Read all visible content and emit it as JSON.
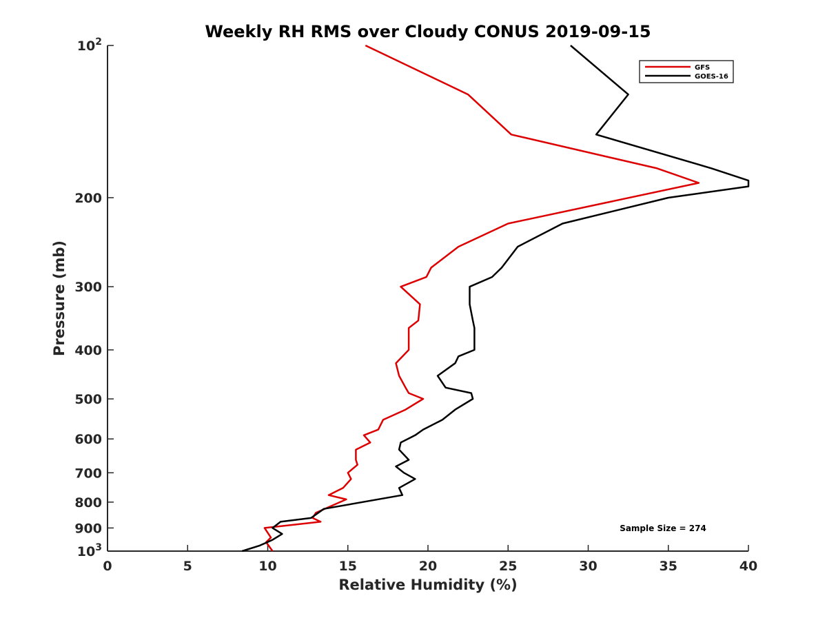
{
  "chart_data": {
    "type": "line",
    "title": "Weekly RH RMS over Cloudy CONUS 2019-09-15",
    "xlabel": "Relative Humidity (%)",
    "ylabel": "Pressure (mb)",
    "xlim": [
      0,
      40
    ],
    "ylim": [
      100,
      1000
    ],
    "y_scale": "log",
    "y_reversed": true,
    "x_ticks": [
      "0",
      "5",
      "10",
      "15",
      "20",
      "25",
      "30",
      "35",
      "40"
    ],
    "y_ticks": [
      {
        "value": 100,
        "base": "10",
        "exp": "2"
      },
      {
        "value": 200,
        "label": "200"
      },
      {
        "value": 300,
        "label": "300"
      },
      {
        "value": 400,
        "label": "400"
      },
      {
        "value": 500,
        "label": "500"
      },
      {
        "value": 600,
        "label": "600"
      },
      {
        "value": 700,
        "label": "700"
      },
      {
        "value": 800,
        "label": "800"
      },
      {
        "value": 900,
        "label": "900"
      },
      {
        "value": 1000,
        "base": "10",
        "exp": "3"
      }
    ],
    "grid": false,
    "legend_position": "top-right",
    "annotation": "Sample Size = 274",
    "series": [
      {
        "name": "GFS",
        "color": "#dd0000",
        "points": [
          [
            16.1,
            100
          ],
          [
            22.5,
            125
          ],
          [
            25.2,
            150
          ],
          [
            34.3,
            175
          ],
          [
            36.9,
            187
          ],
          [
            25.0,
            225
          ],
          [
            21.9,
            250
          ],
          [
            20.2,
            275
          ],
          [
            19.9,
            287
          ],
          [
            18.3,
            300
          ],
          [
            19.5,
            325
          ],
          [
            19.4,
            350
          ],
          [
            18.8,
            362
          ],
          [
            18.8,
            400
          ],
          [
            18.0,
            425
          ],
          [
            18.2,
            450
          ],
          [
            18.6,
            475
          ],
          [
            18.8,
            487
          ],
          [
            19.7,
            500
          ],
          [
            18.6,
            525
          ],
          [
            17.2,
            550
          ],
          [
            16.9,
            575
          ],
          [
            16.0,
            590
          ],
          [
            16.4,
            610
          ],
          [
            15.5,
            630
          ],
          [
            15.5,
            660
          ],
          [
            15.6,
            675
          ],
          [
            15.0,
            700
          ],
          [
            15.2,
            720
          ],
          [
            14.7,
            750
          ],
          [
            13.8,
            775
          ],
          [
            14.9,
            790
          ],
          [
            13.0,
            840
          ],
          [
            12.8,
            860
          ],
          [
            13.3,
            875
          ],
          [
            9.8,
            900
          ],
          [
            10.2,
            940
          ],
          [
            9.9,
            960
          ],
          [
            10.3,
            1000
          ]
        ]
      },
      {
        "name": "GOES-16",
        "color": "#000000",
        "points": [
          [
            28.9,
            100
          ],
          [
            32.5,
            125
          ],
          [
            30.5,
            150
          ],
          [
            37.7,
            175
          ],
          [
            40.0,
            185
          ],
          [
            40.0,
            190
          ],
          [
            35.0,
            200
          ],
          [
            28.4,
            225
          ],
          [
            25.6,
            250
          ],
          [
            24.6,
            275
          ],
          [
            24.0,
            287
          ],
          [
            22.6,
            300
          ],
          [
            22.6,
            325
          ],
          [
            22.8,
            350
          ],
          [
            22.9,
            362
          ],
          [
            22.9,
            400
          ],
          [
            21.9,
            412
          ],
          [
            21.7,
            425
          ],
          [
            20.6,
            450
          ],
          [
            21.1,
            475
          ],
          [
            22.7,
            487
          ],
          [
            22.8,
            500
          ],
          [
            21.7,
            525
          ],
          [
            20.9,
            550
          ],
          [
            19.7,
            575
          ],
          [
            19.2,
            590
          ],
          [
            18.3,
            610
          ],
          [
            18.2,
            630
          ],
          [
            18.8,
            660
          ],
          [
            18.0,
            680
          ],
          [
            18.5,
            700
          ],
          [
            19.2,
            720
          ],
          [
            18.2,
            750
          ],
          [
            18.4,
            775
          ],
          [
            13.5,
            825
          ],
          [
            12.7,
            860
          ],
          [
            10.8,
            875
          ],
          [
            10.3,
            900
          ],
          [
            10.9,
            925
          ],
          [
            10.3,
            950
          ],
          [
            9.5,
            975
          ],
          [
            8.4,
            1000
          ]
        ]
      }
    ]
  }
}
